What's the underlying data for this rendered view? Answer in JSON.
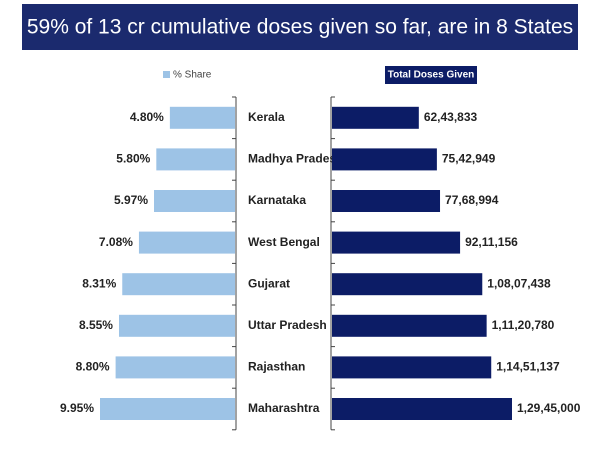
{
  "chart_data": {
    "type": "butterfly-bar",
    "title": "59% of 13 cr cumulative doses given so far, are in 8 States",
    "categories": [
      "Kerala",
      "Madhya Pradesh",
      "Karnataka",
      "West Bengal",
      "Gujarat",
      "Uttar Pradesh",
      "Rajasthan",
      "Maharashtra"
    ],
    "series": [
      {
        "name": "% Share",
        "color": "#9dc3e6",
        "side": "left",
        "values": [
          4.8,
          5.8,
          5.97,
          7.08,
          8.31,
          8.55,
          8.8,
          9.95
        ],
        "value_labels": [
          "4.80%",
          "5.80%",
          "5.97%",
          "7.08%",
          "8.31%",
          "8.55%",
          "8.80%",
          "9.95%"
        ]
      },
      {
        "name": "Total Doses Given",
        "color": "#0c1c66",
        "side": "right",
        "values": [
          6243833,
          7542949,
          7768994,
          9211156,
          10807438,
          11120780,
          11451137,
          12945000
        ],
        "value_labels": [
          "62,43,833",
          "75,42,949",
          "77,68,994",
          "92,11,156",
          "1,08,07,438",
          "1,11,20,780",
          "1,14,51,137",
          "1,29,45,000"
        ]
      }
    ]
  }
}
